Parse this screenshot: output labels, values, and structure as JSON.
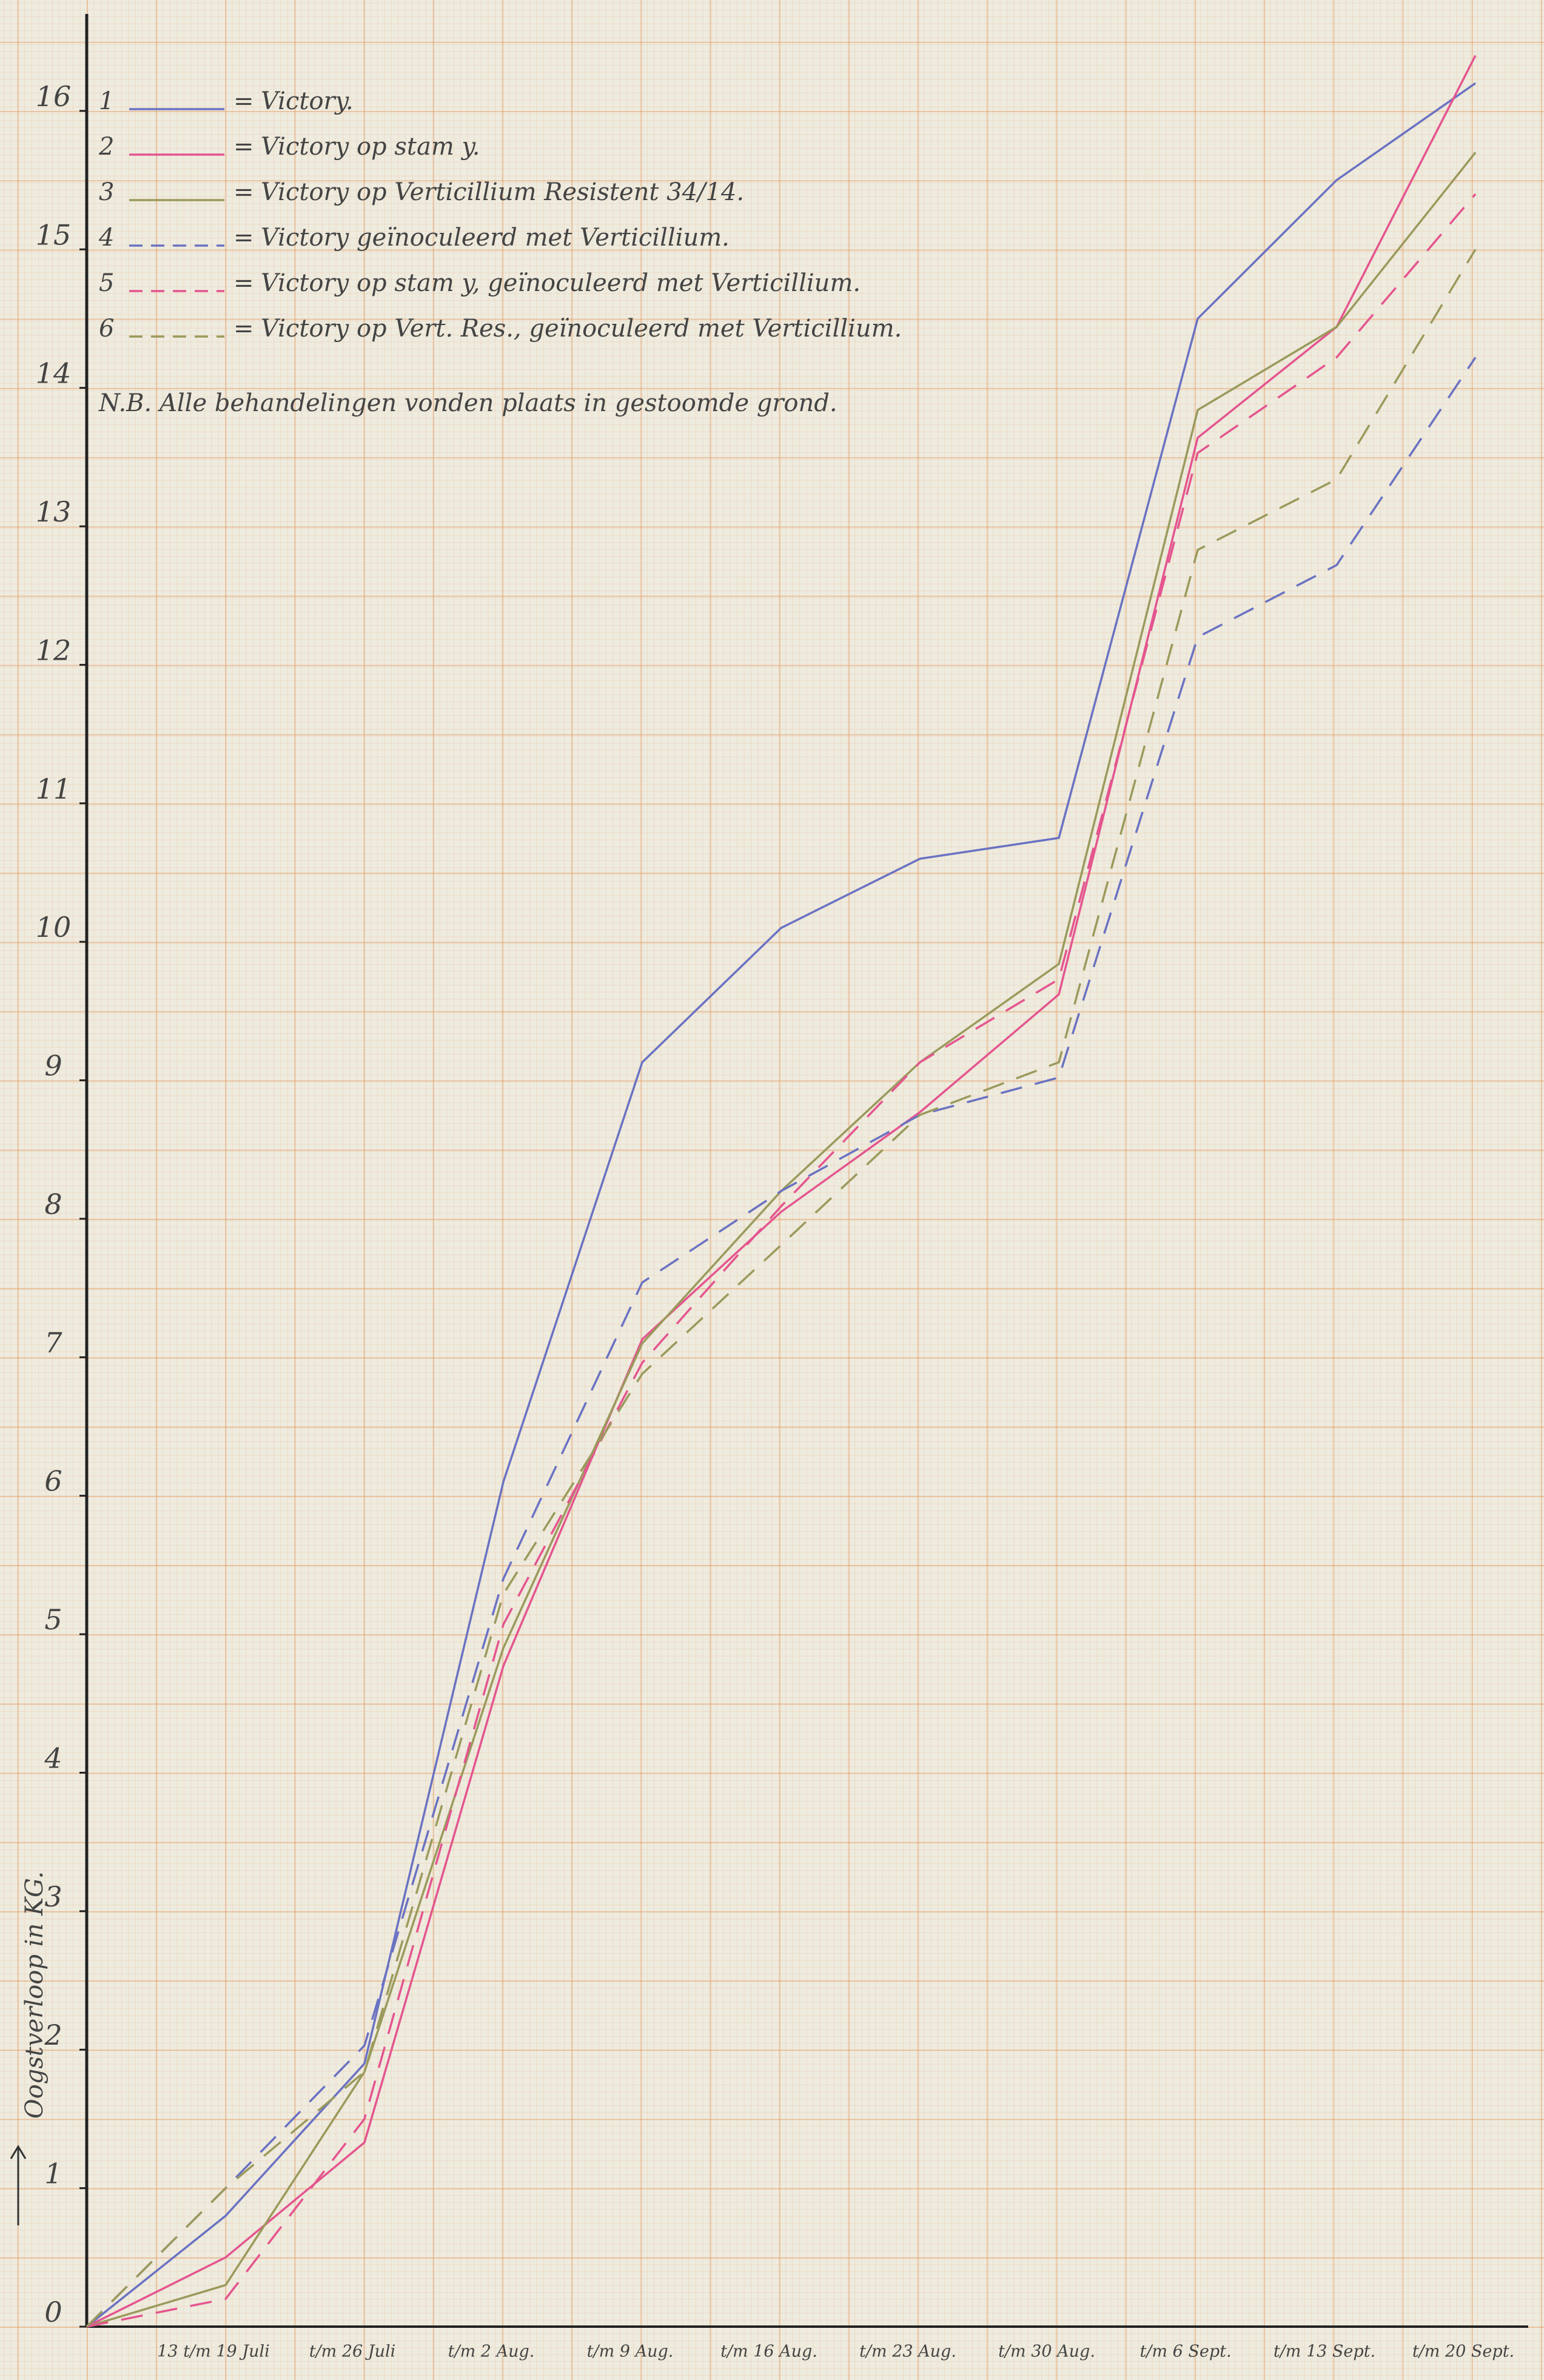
{
  "chart_data": {
    "type": "line",
    "y_label": "Oogstverloop in KG.",
    "note": "N.B. Alle behandelingen vonden plaats in gestoomde grond.",
    "legend_separator": "=",
    "categories": [
      null,
      "13 t/m 19 Juli",
      "t/m 26 Juli",
      "t/m 2 Aug.",
      "t/m 9 Aug.",
      "t/m 16 Aug.",
      "t/m 23 Aug.",
      "t/m 30 Aug.",
      "t/m 6 Sept.",
      "t/m 13 Sept.",
      "t/m 20 Sept."
    ],
    "ylim": [
      0,
      16.7
    ],
    "yticks": [
      0,
      1,
      2,
      3,
      4,
      5,
      6,
      7,
      8,
      9,
      10,
      11,
      12,
      13,
      14,
      15,
      16
    ],
    "series": [
      {
        "number": "1",
        "name": "Victory.",
        "color": "#6a72c2",
        "style": "solid",
        "values": [
          0,
          0.8,
          1.9,
          6.1,
          9.13,
          10.1,
          10.6,
          10.75,
          14.5,
          15.5,
          16.2
        ]
      },
      {
        "number": "2",
        "name": "Victory op stam y.",
        "color": "#e4558f",
        "style": "solid",
        "values": [
          0,
          0.5,
          1.33,
          4.77,
          7.13,
          8.05,
          8.77,
          9.62,
          13.64,
          14.44,
          16.4
        ]
      },
      {
        "number": "3",
        "name": "Victory op Verticillium Resistent 34/14.",
        "color": "#9a9a5c",
        "style": "solid",
        "values": [
          0,
          0.3,
          1.84,
          4.9,
          7.1,
          8.2,
          9.13,
          9.84,
          13.84,
          14.44,
          15.7
        ]
      },
      {
        "number": "4",
        "name": "Victory geïnoculeerd met Verticillium.",
        "color": "#6a72c2",
        "style": "dashed",
        "values": [
          0,
          1.0,
          2.03,
          5.4,
          7.54,
          8.2,
          8.75,
          9.02,
          12.2,
          12.72,
          14.22
        ]
      },
      {
        "number": "5",
        "name": "Victory op stam y, geïnoculeerd met Verticillium.",
        "color": "#e4558f",
        "style": "dashed",
        "values": [
          0,
          0.2,
          1.5,
          5.07,
          6.96,
          8.09,
          9.13,
          9.73,
          13.53,
          14.22,
          15.4
        ]
      },
      {
        "number": "6",
        "name": "Victory op Vert. Res., geïnoculeerd met Verticillium.",
        "color": "#9a9a5c",
        "style": "dashed",
        "values": [
          0,
          1.0,
          1.84,
          5.29,
          6.88,
          7.81,
          8.75,
          9.13,
          12.83,
          13.34,
          15.0
        ]
      }
    ]
  }
}
